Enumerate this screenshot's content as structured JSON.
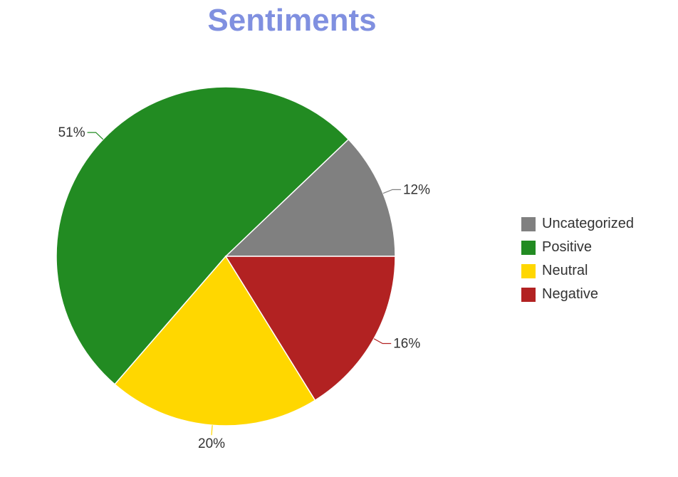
{
  "chart_data": {
    "type": "pie",
    "title": "Sentiments",
    "start_angle_deg": 0,
    "direction": "counterclockwise",
    "slices": [
      {
        "name": "Uncategorized",
        "value": 12,
        "label": "12%",
        "color": "#808080"
      },
      {
        "name": "Positive",
        "value": 51,
        "label": "51%",
        "color": "#228b22"
      },
      {
        "name": "Neutral",
        "value": 20,
        "label": "20%",
        "color": "#ffd700"
      },
      {
        "name": "Negative",
        "value": 16,
        "label": "16%",
        "color": "#b22222"
      }
    ],
    "legend": {
      "position": "right",
      "items": [
        "Uncategorized",
        "Positive",
        "Neutral",
        "Negative"
      ]
    },
    "title_color": "#8090e0"
  }
}
